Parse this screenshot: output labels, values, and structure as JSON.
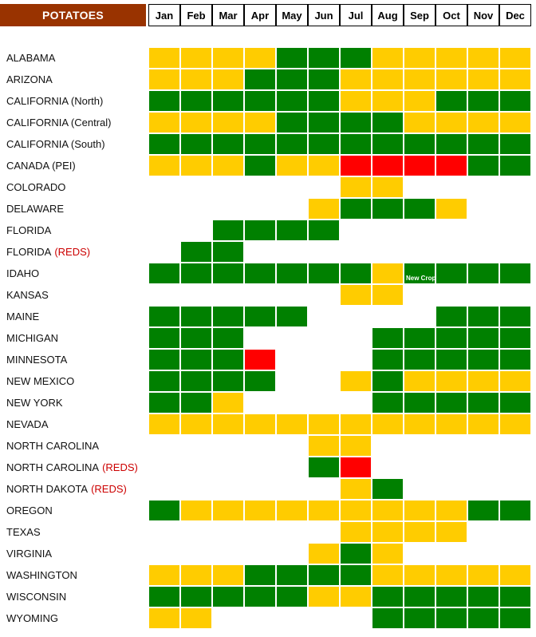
{
  "chart_data": {
    "type": "heatmap",
    "title": "POTATOES",
    "months": [
      "Jan",
      "Feb",
      "Mar",
      "Apr",
      "May",
      "Jun",
      "Jul",
      "Aug",
      "Sep",
      "Oct",
      "Nov",
      "Dec"
    ],
    "colors": {
      "Y": "#ffcc00",
      "G": "#008000",
      "R": "#ff0000"
    },
    "rows": [
      {
        "state": "ALABAMA",
        "note": "",
        "cells": [
          "Y",
          "Y",
          "Y",
          "Y",
          "G",
          "G",
          "G",
          "Y",
          "Y",
          "Y",
          "Y",
          "Y"
        ]
      },
      {
        "state": "ARIZONA",
        "note": "",
        "cells": [
          "Y",
          "Y",
          "Y",
          "G",
          "G",
          "G",
          "Y",
          "Y",
          "Y",
          "Y",
          "Y",
          "Y"
        ]
      },
      {
        "state": "CALIFORNIA  (North)",
        "note": "",
        "cells": [
          "G",
          "G",
          "G",
          "G",
          "G",
          "G",
          "Y",
          "Y",
          "Y",
          "G",
          "G",
          "G"
        ]
      },
      {
        "state": "CALIFORNIA  (Central)",
        "note": "",
        "cells": [
          "Y",
          "Y",
          "Y",
          "Y",
          "G",
          "G",
          "G",
          "G",
          "Y",
          "Y",
          "Y",
          "Y"
        ]
      },
      {
        "state": "CALIFORNIA  (South)",
        "note": "",
        "cells": [
          "G",
          "G",
          "G",
          "G",
          "G",
          "G",
          "G",
          "G",
          "G",
          "G",
          "G",
          "G"
        ]
      },
      {
        "state": "CANADA (PEI)",
        "note": "",
        "cells": [
          "Y",
          "Y",
          "Y",
          "G",
          "Y",
          "Y",
          "R",
          "R",
          "R",
          "R",
          "G",
          "G"
        ]
      },
      {
        "state": "COLORADO",
        "note": "",
        "cells": [
          "",
          "",
          "",
          "",
          "",
          "",
          "Y",
          "Y",
          "",
          "",
          "",
          ""
        ]
      },
      {
        "state": "DELAWARE",
        "note": "",
        "cells": [
          "",
          "",
          "",
          "",
          "",
          "Y",
          "G",
          "G",
          "G",
          "Y",
          "",
          ""
        ]
      },
      {
        "state": "FLORIDA",
        "note": "",
        "cells": [
          "",
          "",
          "G",
          "G",
          "G",
          "G",
          "",
          "",
          "",
          "",
          "",
          ""
        ]
      },
      {
        "state": "FLORIDA",
        "note": "(REDS)",
        "cells": [
          "",
          "G",
          "G",
          "",
          "",
          "",
          "",
          "",
          "",
          "",
          "",
          ""
        ]
      },
      {
        "state": "IDAHO",
        "note": "",
        "cells": [
          "G",
          "G",
          "G",
          "G",
          "G",
          "G",
          "G",
          "Y",
          "G",
          "G",
          "G",
          "G"
        ]
      },
      {
        "state": "KANSAS",
        "note": "",
        "cells": [
          "",
          "",
          "",
          "",
          "",
          "",
          "Y",
          "Y",
          "",
          "",
          "",
          ""
        ]
      },
      {
        "state": "MAINE",
        "note": "",
        "cells": [
          "G",
          "G",
          "G",
          "G",
          "G",
          "",
          "",
          "",
          "",
          "G",
          "G",
          "G"
        ]
      },
      {
        "state": "MICHIGAN",
        "note": "",
        "cells": [
          "G",
          "G",
          "G",
          "",
          "",
          "",
          "",
          "G",
          "G",
          "G",
          "G",
          "G"
        ]
      },
      {
        "state": "MINNESOTA",
        "note": "",
        "cells": [
          "G",
          "G",
          "G",
          "R",
          "",
          "",
          "",
          "G",
          "G",
          "G",
          "G",
          "G"
        ]
      },
      {
        "state": "NEW MEXICO",
        "note": "",
        "cells": [
          "G",
          "G",
          "G",
          "G",
          "",
          "",
          "Y",
          "G",
          "Y",
          "Y",
          "Y",
          "Y"
        ]
      },
      {
        "state": "NEW YORK",
        "note": "",
        "cells": [
          "G",
          "G",
          "Y",
          "",
          "",
          "",
          "",
          "G",
          "G",
          "G",
          "G",
          "G"
        ]
      },
      {
        "state": "NEVADA",
        "note": "",
        "cells": [
          "Y",
          "Y",
          "Y",
          "Y",
          "Y",
          "Y",
          "Y",
          "Y",
          "Y",
          "Y",
          "Y",
          "Y"
        ]
      },
      {
        "state": "NORTH CAROLINA",
        "note": "",
        "cells": [
          "",
          "",
          "",
          "",
          "",
          "Y",
          "Y",
          "",
          "",
          "",
          "",
          ""
        ]
      },
      {
        "state": "NORTH CAROLINA",
        "note": "(REDS)",
        "cells": [
          "",
          "",
          "",
          "",
          "",
          "G",
          "R",
          "",
          "",
          "",
          "",
          ""
        ]
      },
      {
        "state": "NORTH DAKOTA",
        "note": "(REDS)",
        "cells": [
          "",
          "",
          "",
          "",
          "",
          "",
          "Y",
          "G",
          "",
          "",
          "",
          ""
        ]
      },
      {
        "state": "OREGON",
        "note": "",
        "cells": [
          "G",
          "Y",
          "Y",
          "Y",
          "Y",
          "Y",
          "Y",
          "Y",
          "Y",
          "Y",
          "G",
          "G"
        ]
      },
      {
        "state": "TEXAS",
        "note": "",
        "cells": [
          "",
          "",
          "",
          "",
          "",
          "",
          "Y",
          "Y",
          "Y",
          "Y",
          "",
          ""
        ]
      },
      {
        "state": "VIRGINIA",
        "note": "",
        "cells": [
          "",
          "",
          "",
          "",
          "",
          "Y",
          "G",
          "Y",
          "",
          "",
          "",
          ""
        ]
      },
      {
        "state": "WASHINGTON",
        "note": "",
        "cells": [
          "Y",
          "Y",
          "Y",
          "G",
          "G",
          "G",
          "G",
          "Y",
          "Y",
          "Y",
          "Y",
          "Y"
        ]
      },
      {
        "state": "WISCONSIN",
        "note": "",
        "cells": [
          "G",
          "G",
          "G",
          "G",
          "G",
          "Y",
          "Y",
          "G",
          "G",
          "G",
          "G",
          "G"
        ]
      },
      {
        "state": "WYOMING",
        "note": "",
        "cells": [
          "Y",
          "Y",
          "",
          "",
          "",
          "",
          "",
          "G",
          "G",
          "G",
          "G",
          "G"
        ]
      }
    ],
    "annotation": {
      "row": 10,
      "col": 8,
      "text": "New Crop"
    }
  }
}
